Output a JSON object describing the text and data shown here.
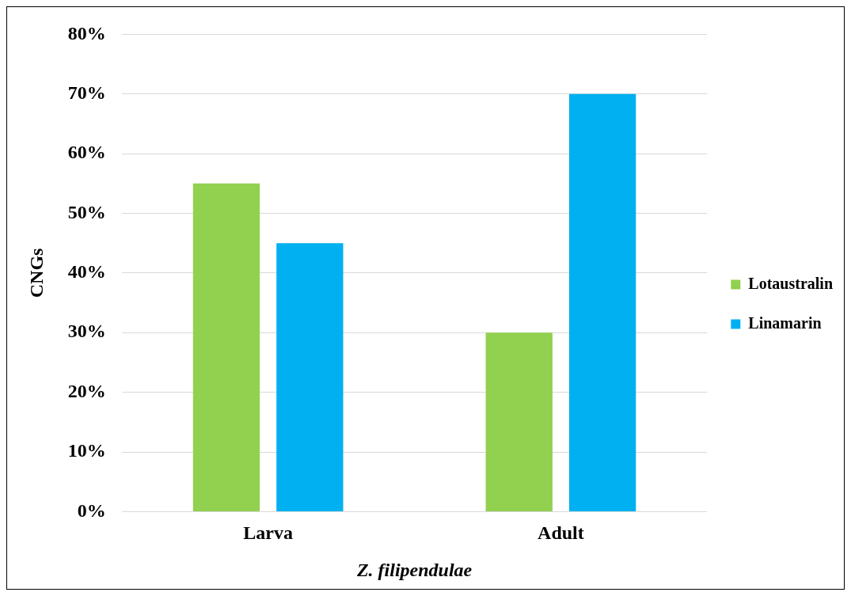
{
  "chart_data": {
    "type": "bar",
    "xlabel": "Z. filipendulae",
    "ylabel": "CNGs",
    "categories": [
      "Larva",
      "Adult"
    ],
    "series": [
      {
        "name": "Lotaustralin",
        "color": "#92d050",
        "values": [
          55,
          30
        ]
      },
      {
        "name": "Linamarin",
        "color": "#00b0f0",
        "values": [
          45,
          70
        ]
      }
    ],
    "ylim": [
      0,
      80
    ],
    "yticks": [
      {
        "value": 0,
        "label": "0%"
      },
      {
        "value": 10,
        "label": "10%"
      },
      {
        "value": 20,
        "label": "20%"
      },
      {
        "value": 30,
        "label": "30%"
      },
      {
        "value": 40,
        "label": "40%"
      },
      {
        "value": 50,
        "label": "50%"
      },
      {
        "value": 60,
        "label": "60%"
      },
      {
        "value": 70,
        "label": "70%"
      },
      {
        "value": 80,
        "label": "80%"
      }
    ],
    "grid": "y",
    "legend": "right"
  }
}
